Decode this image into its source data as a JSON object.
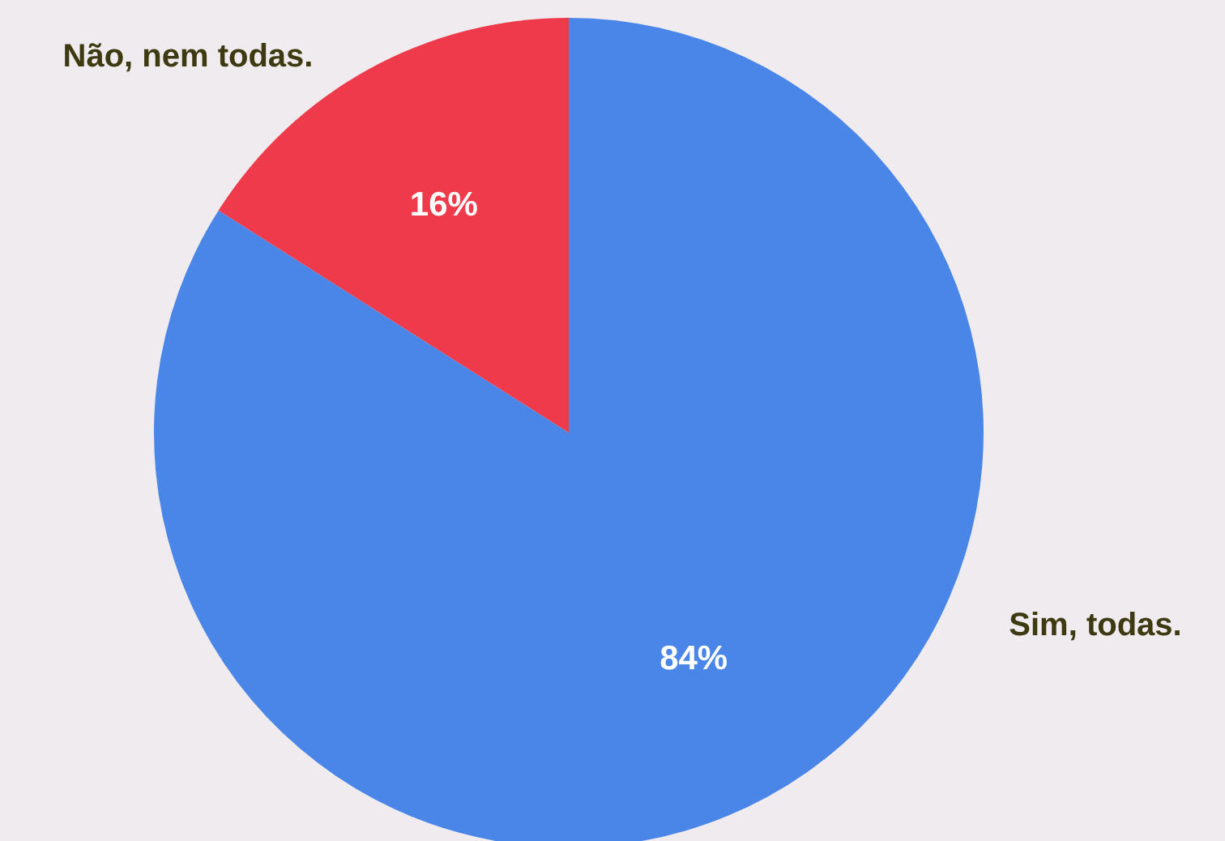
{
  "chart_data": {
    "type": "pie",
    "categories": [
      "Sim, todas.",
      "Não, nem todas."
    ],
    "values": [
      84,
      16
    ],
    "colors": [
      "#4a86e8",
      "#ee3a4a"
    ],
    "value_labels": [
      "84%",
      "16%"
    ]
  }
}
